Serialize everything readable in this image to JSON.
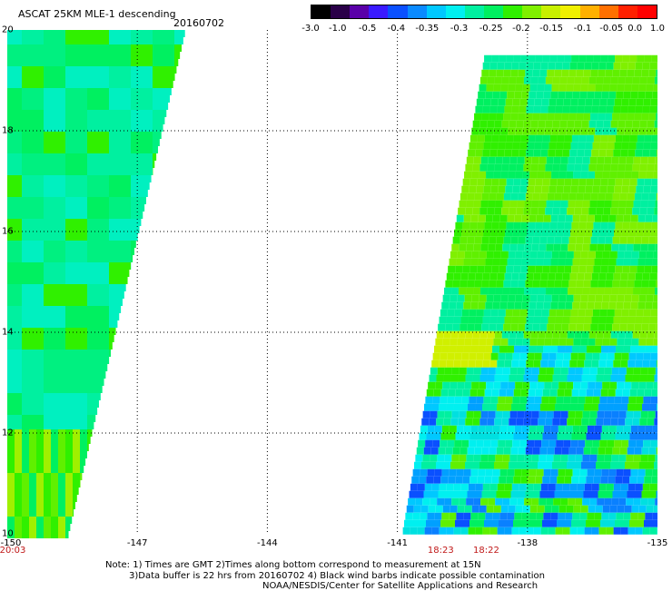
{
  "title": "ASCAT 25KM MLE-1 descending",
  "date": "20160702",
  "colorbar": {
    "colors": [
      "#000000",
      "#2a0048",
      "#5a00a8",
      "#3a1aff",
      "#0a50ff",
      "#0a8aff",
      "#00c8ff",
      "#00f0f0",
      "#00f0a0",
      "#00f060",
      "#30f000",
      "#80f000",
      "#c8f000",
      "#f0f000",
      "#ffb000",
      "#ff7000",
      "#ff2000",
      "#ff0000"
    ],
    "ticks": [
      {
        "label": "-3.0",
        "frac": 0.0
      },
      {
        "label": "-1.0",
        "frac": 0.078
      },
      {
        "label": "-0.5",
        "frac": 0.164
      },
      {
        "label": "-0.4",
        "frac": 0.247
      },
      {
        "label": "-0.35",
        "frac": 0.336
      },
      {
        "label": "-0.3",
        "frac": 0.428
      },
      {
        "label": "-0.25",
        "frac": 0.52
      },
      {
        "label": "-0.2",
        "frac": 0.607
      },
      {
        "label": "-0.15",
        "frac": 0.694
      },
      {
        "label": "-0.1",
        "frac": 0.784
      },
      {
        "label": "-0.05",
        "frac": 0.867
      },
      {
        "label": "0.0",
        "frac": 0.935
      },
      {
        "label": "1.0",
        "frac": 1.0
      }
    ]
  },
  "map": {
    "lon_range": [
      -150,
      -135
    ],
    "lat_range": [
      10,
      20
    ],
    "lat_labels": [
      "20",
      "18",
      "16",
      "14",
      "12",
      "10"
    ],
    "lon_labels": [
      "-150",
      "-147",
      "-144",
      "-141",
      "-138",
      "-135"
    ],
    "grid_lon": [
      -147,
      -144,
      -141,
      -138
    ],
    "grid_lat": [
      12,
      14,
      16,
      18
    ],
    "swath_west": {
      "top_lon_east": -145.9,
      "bottom_lon_east": -148.6,
      "lat_top": 20,
      "lat_bottom": 10
    },
    "swath_east": {
      "top_lon_west": -139.0,
      "bottom_lon_west": -140.9,
      "lat_top": 19.5,
      "lat_bottom": 10
    }
  },
  "times": [
    {
      "label": "20:03",
      "lon": -150.0
    },
    {
      "label": "18:23",
      "lon": -140.0
    },
    {
      "label": "18:22",
      "lon": -138.95
    }
  ],
  "notes": [
    "Note: 1) Times are GMT 2)Times along bottom correspond to measurement at 15N",
    "3)Data buffer is 22 hrs from 20160702 4) Black wind barbs indicate possible contamination",
    "NOAA/NESDIS/Center for Satellite Applications and Research"
  ]
}
